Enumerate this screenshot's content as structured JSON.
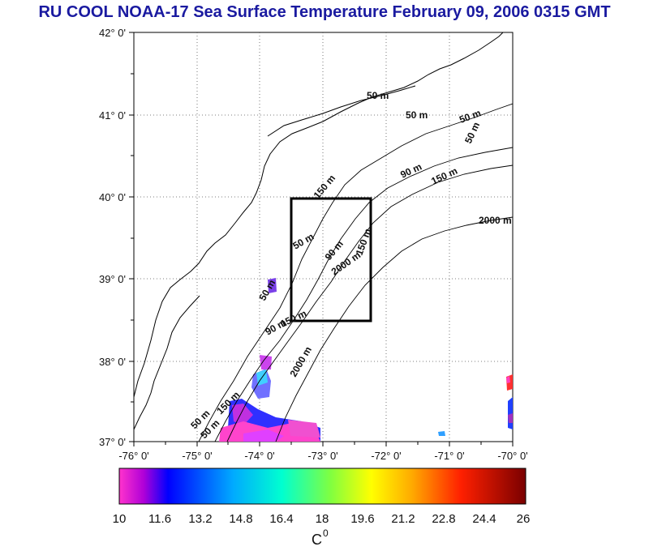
{
  "title": "RU COOL  NOAA-17 Sea Surface Temperature February 09, 2006 0315 GMT",
  "map": {
    "lat_labels": [
      "42° 0'",
      "41° 0'",
      "40° 0'",
      "39° 0'",
      "38° 0'",
      "37° 0'"
    ],
    "lon_labels": [
      "-76° 0'",
      "-75° 0'",
      "-74° 0'",
      "-73° 0'",
      "-72° 0'",
      "-71° 0'",
      "-70° 0'"
    ],
    "isobath_labels": [
      "50 m",
      "50 m",
      "50 m",
      "90 m",
      "150 m",
      "150 m",
      "50 m",
      "90 m",
      "150 m",
      "2000 m",
      "2000 m",
      "50 m",
      "90 m",
      "150 m",
      "2000 m",
      "150 m",
      "50 m",
      "50 m",
      "50 m"
    ],
    "box_label": "",
    "land_color": "#ffffff",
    "ocean_color": "#ffffff"
  },
  "colorbar": {
    "ticks": [
      "10",
      "11.6",
      "13.2",
      "14.8",
      "16.4",
      "18",
      "19.6",
      "21.2",
      "22.8",
      "24.4",
      "26"
    ],
    "unit": "C",
    "unit_superscript": "0",
    "colors": [
      "#ff33cc",
      "#0000ff",
      "#00c8ff",
      "#00ff80",
      "#ffff00",
      "#ff8000",
      "#ff0000",
      "#800000"
    ]
  }
}
